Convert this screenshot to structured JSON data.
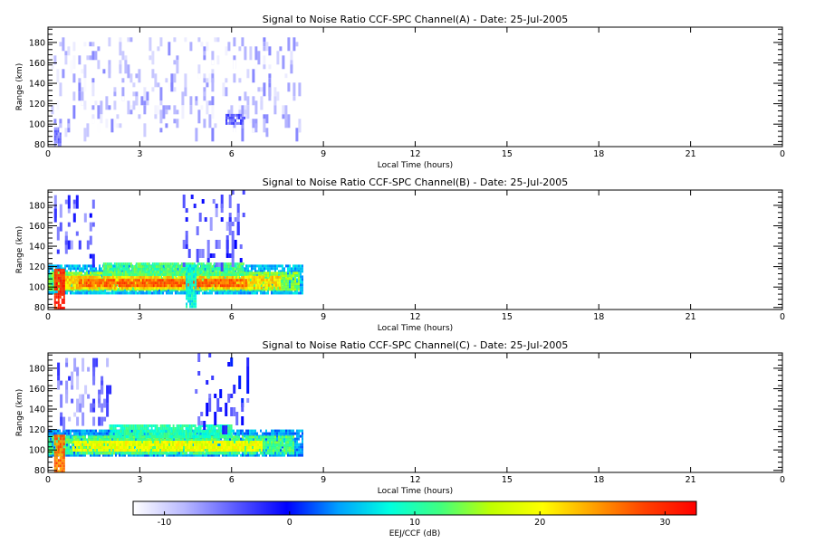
{
  "chart_data": [
    {
      "type": "heatmap",
      "title": "Signal to Noise Ratio CCF-SPC Channel(A) - Date: 25-Jul-2005",
      "xlabel": "Local Time (hours)",
      "ylabel": "Range (km)",
      "x_ticks": [
        "0",
        "3",
        "6",
        "9",
        "12",
        "15",
        "18",
        "21",
        "0"
      ],
      "y_ticks": [
        "80",
        "100",
        "120",
        "140",
        "160",
        "180"
      ],
      "xlim": [
        0,
        24
      ],
      "ylim": [
        78,
        195
      ],
      "data_extent_hours": [
        0,
        8.3
      ],
      "regions": [
        {
          "t0": 0.2,
          "t1": 0.4,
          "r0": 80,
          "r1": 97,
          "snr": -6
        },
        {
          "t0": 0.1,
          "t1": 8.2,
          "r0": 95,
          "r1": 185,
          "snr": -10,
          "style": "sparse"
        },
        {
          "t0": 5.8,
          "t1": 6.4,
          "r0": 102,
          "r1": 110,
          "snr": -5
        }
      ]
    },
    {
      "type": "heatmap",
      "title": "Signal to Noise Ratio CCF-SPC Channel(B) - Date: 25-Jul-2005",
      "xlabel": "Local Time (hours)",
      "ylabel": "Range (km)",
      "x_ticks": [
        "0",
        "3",
        "6",
        "9",
        "12",
        "15",
        "18",
        "21",
        "0"
      ],
      "y_ticks": [
        "80",
        "100",
        "120",
        "140",
        "160",
        "180"
      ],
      "xlim": [
        0,
        24
      ],
      "ylim": [
        78,
        195
      ],
      "data_extent_hours": [
        0,
        8.3
      ],
      "regions": [
        {
          "t0": 0.0,
          "t1": 8.3,
          "r0": 93,
          "r1": 122,
          "snr": 5
        },
        {
          "t0": 0.0,
          "t1": 8.2,
          "r0": 97,
          "r1": 115,
          "snr": 14
        },
        {
          "t0": 0.5,
          "t1": 7.6,
          "r0": 100,
          "r1": 111,
          "snr": 22
        },
        {
          "t0": 1.0,
          "t1": 6.5,
          "r0": 102,
          "r1": 108,
          "snr": 27
        },
        {
          "t0": 0.2,
          "t1": 0.5,
          "r0": 80,
          "r1": 118,
          "snr": 30
        },
        {
          "t0": 1.8,
          "t1": 6.4,
          "r0": 112,
          "r1": 124,
          "snr": 12
        },
        {
          "t0": 0.2,
          "t1": 1.5,
          "r0": 130,
          "r1": 190,
          "snr": -4,
          "style": "sparse"
        },
        {
          "t0": 4.4,
          "t1": 6.4,
          "r0": 120,
          "r1": 195,
          "snr": -4,
          "style": "sparse"
        },
        {
          "t0": 4.5,
          "t1": 4.8,
          "r0": 80,
          "r1": 122,
          "snr": 8
        }
      ]
    },
    {
      "type": "heatmap",
      "title": "Signal to Noise Ratio CCF-SPC Channel(C) - Date: 25-Jul-2005",
      "xlabel": "Local Time (hours)",
      "ylabel": "Range (km)",
      "x_ticks": [
        "0",
        "3",
        "6",
        "9",
        "12",
        "15",
        "18",
        "21",
        "0"
      ],
      "y_ticks": [
        "80",
        "100",
        "120",
        "140",
        "160",
        "180"
      ],
      "xlim": [
        0,
        24
      ],
      "ylim": [
        78,
        195
      ],
      "data_extent_hours": [
        0,
        8.3
      ],
      "regions": [
        {
          "t0": 0.0,
          "t1": 8.3,
          "r0": 95,
          "r1": 120,
          "snr": 4
        },
        {
          "t0": 0.0,
          "t1": 8.0,
          "r0": 98,
          "r1": 114,
          "snr": 12
        },
        {
          "t0": 0.8,
          "t1": 7.0,
          "r0": 101,
          "r1": 109,
          "snr": 19
        },
        {
          "t0": 0.2,
          "t1": 0.5,
          "r0": 80,
          "r1": 115,
          "snr": 26
        },
        {
          "t0": 2.0,
          "t1": 6.0,
          "r0": 114,
          "r1": 125,
          "snr": 10
        },
        {
          "t0": 0.3,
          "t1": 2.0,
          "r0": 130,
          "r1": 190,
          "snr": -6,
          "style": "sparse"
        },
        {
          "t0": 4.8,
          "t1": 6.5,
          "r0": 120,
          "r1": 195,
          "snr": -3,
          "style": "sparse"
        }
      ]
    }
  ],
  "colorbar": {
    "label": "EEJ/CCF (dB)",
    "ticks": [
      "-10",
      "0",
      "10",
      "20",
      "30"
    ],
    "tick_values": [
      -10,
      0,
      10,
      20,
      30
    ],
    "range": [
      -12.5,
      32.5
    ],
    "colors": [
      "#ffffff",
      "#b8b8ff",
      "#5a5aff",
      "#0000ff",
      "#00a0ff",
      "#00ffe0",
      "#40ff80",
      "#c0ff00",
      "#ffff00",
      "#ffa000",
      "#ff4000",
      "#ff0000"
    ]
  }
}
